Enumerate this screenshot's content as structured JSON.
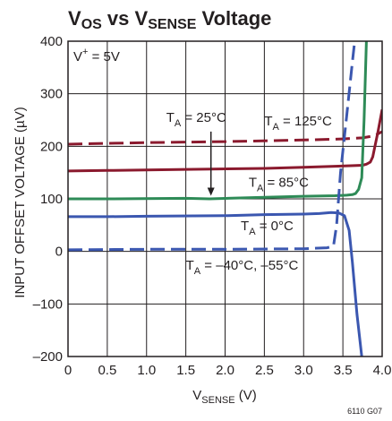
{
  "chart_data": {
    "type": "line",
    "title": {
      "main": "V",
      "sub1": "OS",
      "mid": " vs V",
      "sub2": "SENSE",
      "tail": " Voltage"
    },
    "xlabel": {
      "main": "V",
      "sub": "SENSE",
      "tail": " (V)"
    },
    "ylabel": "INPUT OFFSET VOLTAGE (µV)",
    "xlim": [
      0,
      4.0
    ],
    "ylim": [
      -200,
      400
    ],
    "x_ticks": [
      0,
      0.5,
      1.0,
      1.5,
      2.0,
      2.5,
      3.0,
      3.5,
      4.0
    ],
    "x_tick_labels": [
      "0",
      "0.5",
      "1.0",
      "1.5",
      "2.0",
      "2.5",
      "3.0",
      "3.5",
      "4.0"
    ],
    "y_ticks": [
      -200,
      -100,
      0,
      100,
      200,
      300,
      400
    ],
    "y_tick_labels": [
      "–200",
      "–100",
      "0",
      "100",
      "200",
      "300",
      "400"
    ],
    "grid": true,
    "condition": {
      "main": "V",
      "sup": "+",
      "tail": " = 5V"
    },
    "figure_id": "6110 G07",
    "colors": {
      "red": "#8b1a2e",
      "green": "#2e8b57",
      "blue": "#3b57b0",
      "text": "#231f20"
    },
    "series": [
      {
        "color": "#8b1a2e",
        "dashed": true,
        "x": [
          0,
          0.3,
          1.0,
          2.0,
          3.0,
          3.5,
          3.75,
          3.9,
          4.0
        ],
        "y": [
          204,
          205,
          207,
          209,
          212,
          214,
          216,
          220,
          228
        ]
      },
      {
        "color": "#8b1a2e",
        "dashed": false,
        "x": [
          0,
          0.5,
          1.5,
          2.5,
          3.0,
          3.4,
          3.6,
          3.75,
          3.8,
          3.85,
          3.88,
          3.95,
          4.0
        ],
        "y": [
          153,
          154,
          156,
          158,
          160,
          162,
          163,
          164,
          166,
          170,
          180,
          230,
          270
        ]
      },
      {
        "color": "#2e8b57",
        "dashed": false,
        "x": [
          0,
          0.5,
          1.5,
          1.8,
          2.5,
          3.0,
          3.4,
          3.55,
          3.62,
          3.66,
          3.7,
          3.74,
          3.77,
          3.8
        ],
        "y": [
          100,
          100,
          101,
          100,
          103,
          105,
          106,
          107,
          108,
          110,
          118,
          140,
          250,
          400
        ]
      },
      {
        "color": "#3b57b0",
        "dashed": false,
        "x": [
          0,
          0.5,
          1.0,
          2.0,
          2.5,
          3.0,
          3.2,
          3.35,
          3.45,
          3.52,
          3.58,
          3.62,
          3.68,
          3.74
        ],
        "y": [
          66,
          66,
          67,
          68,
          70,
          71,
          72,
          74,
          73,
          68,
          40,
          -20,
          -120,
          -200
        ]
      },
      {
        "color": "#3b57b0",
        "dashed": true,
        "x": [
          0,
          1.0,
          2.0,
          3.0,
          3.3,
          3.38,
          3.42,
          3.47,
          3.55,
          3.62,
          3.65
        ],
        "y": [
          3,
          4,
          4,
          5,
          7,
          10,
          50,
          150,
          260,
          360,
          400
        ]
      }
    ],
    "annotations": [
      {
        "main": "T",
        "sub": "A",
        "tail": " = 25°C",
        "x": 1.25,
        "y": 247
      },
      {
        "main": "T",
        "sub": "A",
        "tail": " = 125°C",
        "x": 2.5,
        "y": 240
      },
      {
        "main": "T",
        "sub": "A",
        "tail": " = 85°C",
        "x": 2.3,
        "y": 123
      },
      {
        "main": "T",
        "sub": "A",
        "tail": " = 0°C",
        "x": 2.2,
        "y": 40
      },
      {
        "main": "T",
        "sub": "A",
        "tail": " = –40°C, –55°C",
        "x": 1.5,
        "y": -35
      }
    ],
    "arrow": {
      "x": 1.82,
      "y_from": 228,
      "y_to": 106
    }
  }
}
